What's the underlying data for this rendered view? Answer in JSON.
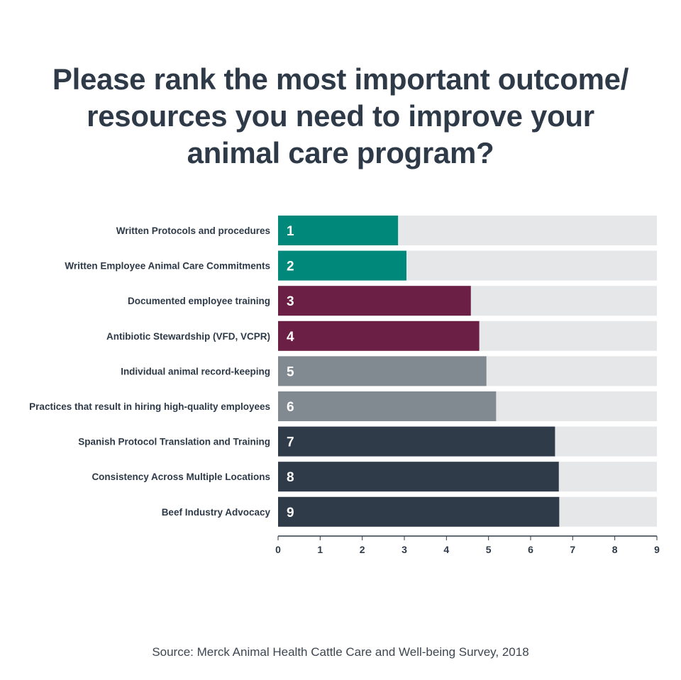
{
  "title_lines": [
    "Please rank the most important outcome/",
    "resources you need to improve your",
    "animal care program?"
  ],
  "source": "Source: Merck Animal Health Cattle Care and Well-being Survey, 2018",
  "colors": {
    "teal": "#00897b",
    "maroon": "#6b1f45",
    "gray": "#818991",
    "navy": "#2f3b49",
    "track": "#e6e7e8",
    "title": "#2e3a48"
  },
  "chart_data": {
    "type": "bar",
    "orientation": "horizontal",
    "categories": [
      "Written Protocols and procedures",
      "Written Employee Animal Care Commitments",
      "Documented employee training",
      "Antibiotic Stewardship (VFD, VCPR)",
      "Individual animal record-keeping",
      "Practices that result in hiring high-quality employees",
      "Spanish Protocol Translation and Training",
      "Consistency Across Multiple Locations",
      "Beef Industry Advocacy"
    ],
    "values": [
      2.85,
      3.05,
      4.58,
      4.78,
      4.95,
      5.18,
      6.58,
      6.67,
      6.68
    ],
    "rank_labels": [
      "1",
      "2",
      "3",
      "4",
      "5",
      "6",
      "7",
      "8",
      "9"
    ],
    "bar_colors": [
      "teal",
      "teal",
      "maroon",
      "maroon",
      "gray",
      "gray",
      "navy",
      "navy",
      "navy"
    ],
    "xlim": [
      0,
      9
    ],
    "x_ticks": [
      "0",
      "1",
      "2",
      "3",
      "4",
      "5",
      "6",
      "7",
      "8",
      "9"
    ],
    "xlabel": "",
    "ylabel": "",
    "grid": false
  }
}
